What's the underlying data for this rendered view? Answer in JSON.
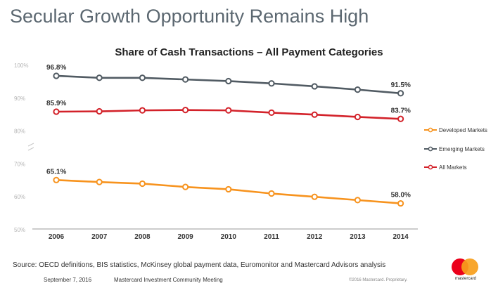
{
  "slide": {
    "title": "Secular Growth Opportunity Remains High",
    "source": "Source: OECD definitions, BIS statistics, McKinsey global payment data, Euromonitor and Mastercard Advisors analysis",
    "date": "September 7, 2016",
    "meeting": "Mastercard Investment Community Meeting",
    "copyright": "©2016 Mastercard. Proprietary.",
    "logo_text": "mastercard"
  },
  "colors": {
    "developed": "#f7931e",
    "emerging": "#515b63",
    "all": "#d3222a",
    "grid": "#d0d0d0"
  },
  "chart_data": {
    "type": "line",
    "title": "Share of Cash Transactions – All Payment Categories",
    "xlabel": "",
    "ylabel": "",
    "categories": [
      "2006",
      "2007",
      "2008",
      "2009",
      "2010",
      "2011",
      "2012",
      "2013",
      "2014"
    ],
    "ylim": [
      50,
      100
    ],
    "yticks": [
      50,
      60,
      70,
      80,
      90,
      100
    ],
    "ytick_labels": [
      "50%",
      "60%",
      "70%",
      "80%",
      "90%",
      "100%"
    ],
    "axis_break": [
      70,
      80
    ],
    "grid": false,
    "legend_position": "right",
    "series": [
      {
        "name": "Developed Markets",
        "key": "developed",
        "values": [
          65.1,
          64.5,
          64.0,
          63.0,
          62.3,
          61.0,
          60.0,
          59.0,
          58.0
        ],
        "start_label": "65.1%",
        "end_label": "58.0%"
      },
      {
        "name": "Emerging Markets",
        "key": "emerging",
        "values": [
          96.8,
          96.2,
          96.2,
          95.7,
          95.2,
          94.5,
          93.6,
          92.6,
          91.5
        ],
        "start_label": "96.8%",
        "end_label": "91.5%"
      },
      {
        "name": "All Markets",
        "key": "all",
        "values": [
          85.9,
          86.0,
          86.3,
          86.4,
          86.3,
          85.6,
          85.0,
          84.3,
          83.7
        ],
        "start_label": "85.9%",
        "end_label": "83.7%"
      }
    ]
  }
}
